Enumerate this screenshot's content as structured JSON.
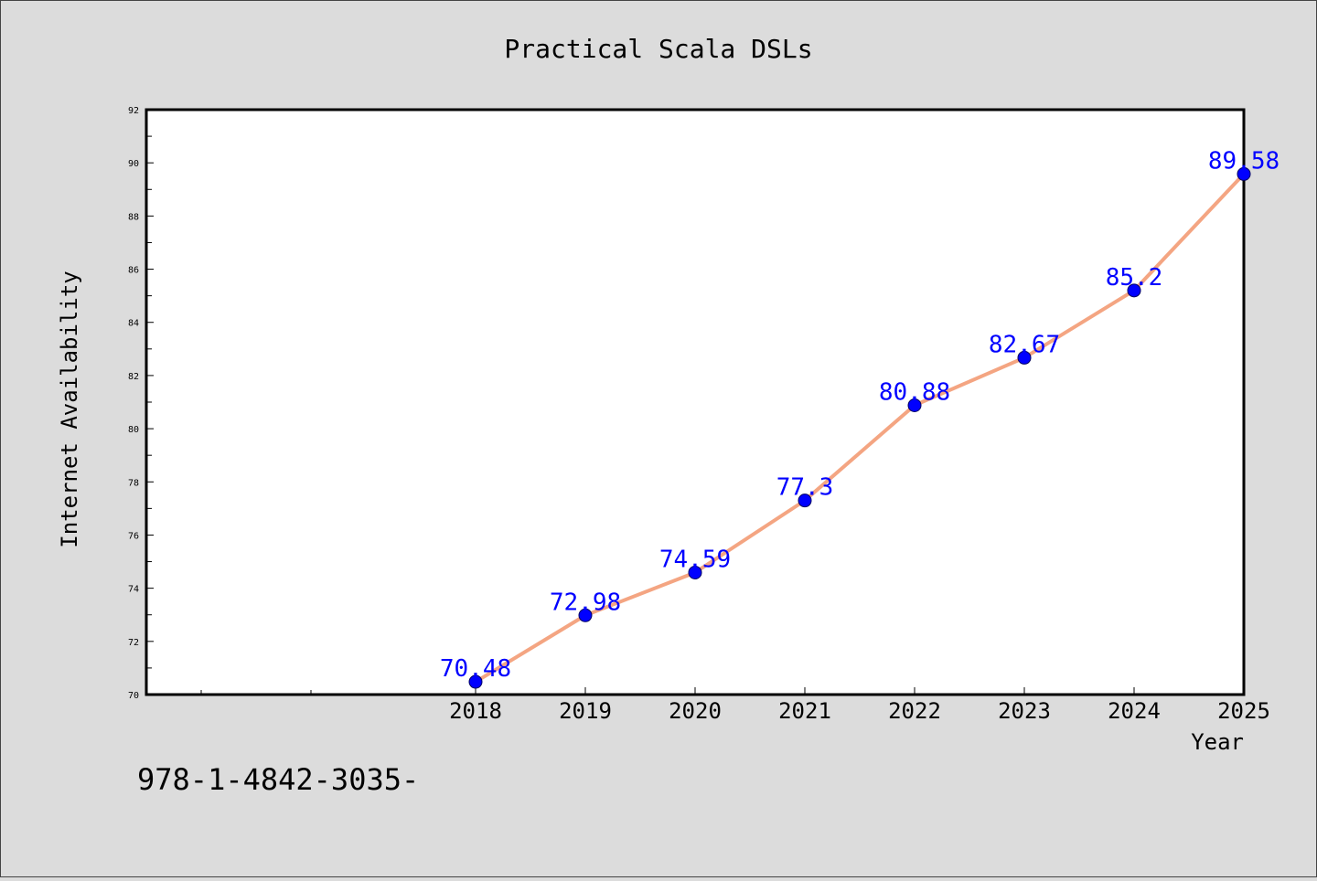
{
  "chart_data": {
    "type": "line",
    "title": "Practical Scala DSLs",
    "xlabel": "Year",
    "ylabel": "Internet Availability",
    "x": [
      2018,
      2019,
      2020,
      2021,
      2022,
      2023,
      2024,
      2025
    ],
    "x_tick_labels": [
      "2018",
      "2019",
      "2020",
      "2021",
      "2022",
      "2023",
      "2024",
      "2025"
    ],
    "series": [
      {
        "values": [
          70.48,
          72.98,
          74.59,
          77.3,
          80.88,
          82.67,
          85.2,
          89.58
        ],
        "data_labels": [
          "70.48",
          "72.98",
          "74.59",
          "77.3",
          "80.88",
          "82.67",
          "85.2",
          "89.58"
        ]
      }
    ],
    "ylim": [
      70,
      92
    ],
    "y_ticks": [
      70,
      72,
      74,
      76,
      78,
      80,
      82,
      84,
      86,
      88,
      90,
      92
    ],
    "grid": false,
    "legend": "none",
    "footnote": "978-1-4842-3035-",
    "colors": {
      "background": "#dcdcdc",
      "plot_area": "#ffffff",
      "line": "#f4a582",
      "marker": "#0000ff",
      "data_label": "#0000ff",
      "text": "#000000"
    }
  }
}
